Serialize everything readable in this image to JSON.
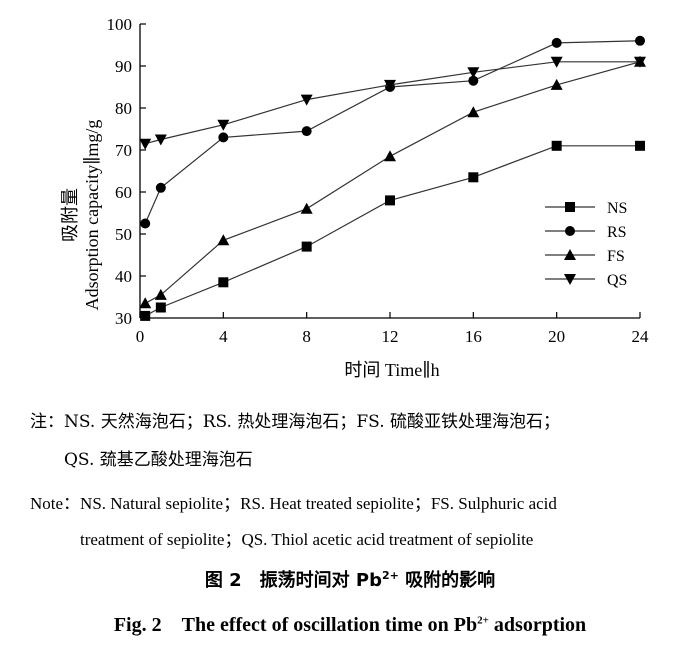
{
  "chart_data": {
    "type": "line",
    "title": "",
    "xlabel": "时间 Time∥h",
    "ylabel": "吸附量 Adsorption capacity∥mg/g",
    "ylabel_cn": "吸附量",
    "ylabel_en": "Adsorption capacity∥mg/g",
    "xlim": [
      0,
      24
    ],
    "ylim": [
      30,
      100
    ],
    "xticks": [
      0,
      4,
      8,
      12,
      16,
      20,
      24
    ],
    "yticks": [
      30,
      40,
      50,
      60,
      70,
      80,
      90,
      100
    ],
    "grid": false,
    "legend_position": "bottom-right",
    "series": [
      {
        "name": "NS",
        "marker": "square",
        "x": [
          0.25,
          1,
          4,
          8,
          12,
          16,
          20,
          24
        ],
        "y": [
          30.5,
          32.5,
          38.5,
          47,
          58,
          63.5,
          71,
          71
        ]
      },
      {
        "name": "RS",
        "marker": "circle",
        "x": [
          0.25,
          1,
          4,
          8,
          12,
          16,
          20,
          24
        ],
        "y": [
          52.5,
          61,
          73,
          74.5,
          85,
          86.5,
          95.5,
          96
        ]
      },
      {
        "name": "FS",
        "marker": "triangle-up",
        "x": [
          0.25,
          1,
          4,
          8,
          12,
          16,
          20,
          24
        ],
        "y": [
          33.5,
          35.5,
          48.5,
          56,
          68.5,
          79,
          85.5,
          91
        ]
      },
      {
        "name": "QS",
        "marker": "triangle-down",
        "x": [
          0.25,
          1,
          4,
          8,
          12,
          16,
          20,
          24
        ],
        "y": [
          71.5,
          72.5,
          76,
          82,
          85.5,
          88.5,
          91,
          91
        ]
      }
    ]
  },
  "notes": {
    "cn_line1": "注：NS. 天然海泡石；RS. 热处理海泡石；FS. 硫酸亚铁处理海泡石；",
    "cn_line2": "QS. 巯基乙酸处理海泡石",
    "en_line1": "Note：NS. Natural sepiolite；RS. Heat treated sepiolite；FS. Sulphuric acid",
    "en_line2": "treatment of sepiolite；QS. Thiol acetic acid treatment of sepiolite"
  },
  "caption": {
    "cn_prefix": "图 2　振荡时间对 Pb",
    "cn_sup": "2+",
    "cn_suffix": " 吸附的影响",
    "en_prefix": "Fig. 2　The effect of oscillation time on Pb",
    "en_sup": "2+",
    "en_suffix": " adsorption"
  }
}
